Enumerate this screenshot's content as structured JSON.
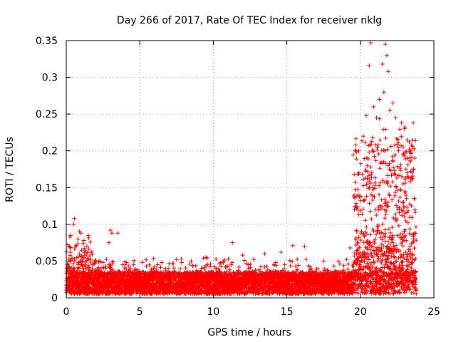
{
  "chart_data": {
    "type": "scatter",
    "title": "Day 266 of 2017, Rate Of TEC Index for receiver nklg",
    "xlabel": "GPS time / hours",
    "ylabel": "ROTI / TECUs",
    "xlim": [
      0,
      25
    ],
    "ylim": [
      0,
      0.35
    ],
    "xticks": [
      0,
      5,
      10,
      15,
      20,
      25
    ],
    "xtick_labels": [
      "0",
      "5",
      "10",
      "15",
      "20",
      "25"
    ],
    "yticks": [
      0,
      0.05,
      0.1,
      0.15,
      0.2,
      0.25,
      0.3,
      0.35
    ],
    "ytick_labels": [
      "0",
      "0.05",
      "0.1",
      "0.15",
      "0.2",
      "0.25",
      "0.3",
      "0.35"
    ],
    "grid": true,
    "marker": "+",
    "marker_color": "#ff0000",
    "series": [
      {
        "name": "ROTI",
        "x_range": [
          0,
          23.8
        ],
        "baseline_band": [
          0.005,
          0.035
        ],
        "outlier_points": [
          [
            0.2,
            0.07
          ],
          [
            0.3,
            0.085
          ],
          [
            0.5,
            0.1
          ],
          [
            0.55,
            0.108
          ],
          [
            0.8,
            0.08
          ],
          [
            0.9,
            0.09
          ],
          [
            1.0,
            0.088
          ],
          [
            1.2,
            0.078
          ],
          [
            1.4,
            0.07
          ],
          [
            1.5,
            0.085
          ],
          [
            1.7,
            0.062
          ],
          [
            2.0,
            0.05
          ],
          [
            2.5,
            0.048
          ],
          [
            2.9,
            0.075
          ],
          [
            3.0,
            0.092
          ],
          [
            3.1,
            0.088
          ],
          [
            3.5,
            0.088
          ],
          [
            4.0,
            0.045
          ],
          [
            6.5,
            0.048
          ],
          [
            7.5,
            0.052
          ],
          [
            8.5,
            0.05
          ],
          [
            9.5,
            0.055
          ],
          [
            10.5,
            0.048
          ],
          [
            11.3,
            0.075
          ],
          [
            12.0,
            0.058
          ],
          [
            13.5,
            0.06
          ],
          [
            14.6,
            0.062
          ],
          [
            15.4,
            0.071
          ],
          [
            16.2,
            0.07
          ],
          [
            17.5,
            0.05
          ],
          [
            18.5,
            0.05
          ],
          [
            19.3,
            0.068
          ],
          [
            19.7,
            0.2
          ],
          [
            19.9,
            0.17
          ],
          [
            20.2,
            0.22
          ],
          [
            20.4,
            0.248
          ],
          [
            20.6,
            0.316
          ],
          [
            20.7,
            0.347
          ],
          [
            20.9,
            0.26
          ],
          [
            21.1,
            0.245
          ],
          [
            21.3,
            0.27
          ],
          [
            21.5,
            0.318
          ],
          [
            21.6,
            0.28
          ],
          [
            21.7,
            0.345
          ],
          [
            21.8,
            0.33
          ],
          [
            21.9,
            0.308
          ],
          [
            22.0,
            0.255
          ],
          [
            22.2,
            0.265
          ],
          [
            22.4,
            0.245
          ],
          [
            22.6,
            0.2
          ],
          [
            22.8,
            0.238
          ],
          [
            23.0,
            0.23
          ],
          [
            23.2,
            0.17
          ],
          [
            23.4,
            0.2
          ],
          [
            23.6,
            0.238
          ],
          [
            23.7,
            0.19
          ]
        ]
      }
    ]
  }
}
